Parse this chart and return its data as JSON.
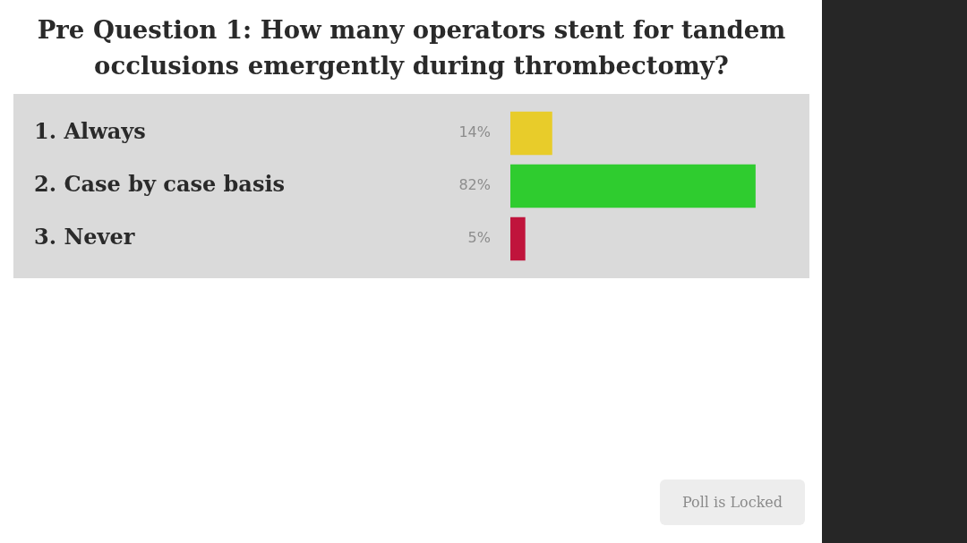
{
  "chart_data": {
    "type": "bar",
    "orientation": "horizontal",
    "title": "Pre Question 1: How many operators stent for tandem occlusions emergently during thrombectomy?",
    "categories": [
      "1. Always",
      "2. Case by case basis",
      "3. Never"
    ],
    "values": [
      14,
      82,
      5
    ],
    "colors": [
      "#e8cc2a",
      "#2fcc2f",
      "#c0143c"
    ],
    "value_labels": [
      "14%",
      "82%",
      "5%"
    ],
    "xlim": [
      0,
      100
    ],
    "tick_labels": "y",
    "annotations": [
      "Poll is Locked"
    ]
  }
}
